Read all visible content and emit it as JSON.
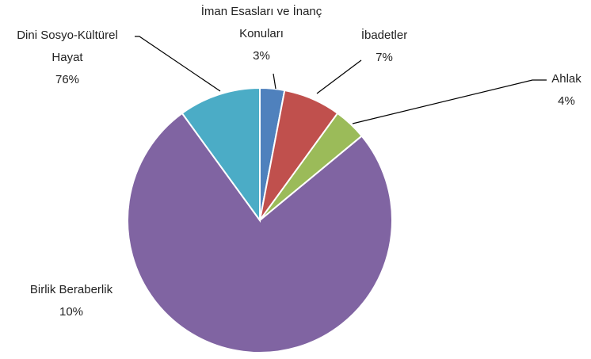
{
  "chart_data": {
    "type": "pie",
    "categories": [
      "İman Esasları ve İnanç Konuları",
      "İbadetler",
      "Ahlak",
      "Dini Sosyo-Kültürel Hayat",
      "Birlik Beraberlik"
    ],
    "values": [
      3,
      7,
      4,
      76,
      10
    ],
    "value_labels": [
      "3%",
      "7%",
      "4%",
      "76%",
      "10%"
    ],
    "colors": [
      "#4f81bd",
      "#c0504d",
      "#9bbb59",
      "#8064a2",
      "#4bacc6"
    ]
  }
}
